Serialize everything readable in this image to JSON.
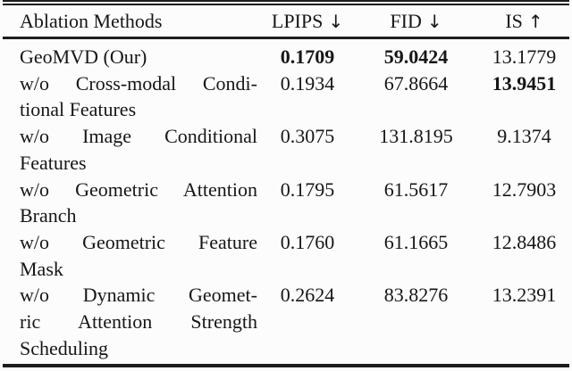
{
  "colors": {
    "background": "#fcfcfc",
    "text": "#161616",
    "rule": "#1d1d1d"
  },
  "table": {
    "headers": [
      {
        "label": "Ablation Methods",
        "arrow": ""
      },
      {
        "label": "LPIPS",
        "arrow": "↓"
      },
      {
        "label": "FID",
        "arrow": "↓"
      },
      {
        "label": "IS",
        "arrow": "↑"
      }
    ],
    "rows": [
      {
        "method": "GeoMVD (Our)",
        "method_lines": [
          {
            "text": "GeoMVD (Our)",
            "justify": false
          }
        ],
        "values": [
          {
            "text": "0.1709",
            "bold": true
          },
          {
            "text": "59.0424",
            "bold": true
          },
          {
            "text": "13.1779",
            "bold": false
          }
        ]
      },
      {
        "method": "w/o Cross-modal Conditional Features",
        "method_lines": [
          {
            "text": "w/o Cross-modal Condi-",
            "justify": true
          },
          {
            "text": "tional Features",
            "justify": false
          }
        ],
        "values": [
          {
            "text": "0.1934",
            "bold": false
          },
          {
            "text": "67.8664",
            "bold": false
          },
          {
            "text": "13.9451",
            "bold": true
          }
        ]
      },
      {
        "method": "w/o Image Conditional Features",
        "method_lines": [
          {
            "text": "w/o Image Conditional",
            "justify": true
          },
          {
            "text": "Features",
            "justify": false
          }
        ],
        "values": [
          {
            "text": "0.3075",
            "bold": false
          },
          {
            "text": "131.8195",
            "bold": false
          },
          {
            "text": "9.1374",
            "bold": false
          }
        ]
      },
      {
        "method": "w/o Geometric Attention Branch",
        "method_lines": [
          {
            "text": "w/o Geometric Attention",
            "justify": true
          },
          {
            "text": "Branch",
            "justify": false
          }
        ],
        "values": [
          {
            "text": "0.1795",
            "bold": false
          },
          {
            "text": "61.5617",
            "bold": false
          },
          {
            "text": "12.7903",
            "bold": false
          }
        ]
      },
      {
        "method": "w/o Geometric Feature Mask",
        "method_lines": [
          {
            "text": "w/o Geometric Feature",
            "justify": true
          },
          {
            "text": "Mask",
            "justify": false
          }
        ],
        "values": [
          {
            "text": "0.1760",
            "bold": false
          },
          {
            "text": "61.1665",
            "bold": false
          },
          {
            "text": "12.8486",
            "bold": false
          }
        ]
      },
      {
        "method": "w/o Dynamic Geometric Attention Strength Scheduling",
        "method_lines": [
          {
            "text": "w/o Dynamic Geomet-",
            "justify": true
          },
          {
            "text": "ric Attention Strength",
            "justify": true
          },
          {
            "text": "Scheduling",
            "justify": false
          }
        ],
        "values": [
          {
            "text": "0.2624",
            "bold": false
          },
          {
            "text": "83.8276",
            "bold": false
          },
          {
            "text": "13.2391",
            "bold": false
          }
        ]
      }
    ]
  },
  "chart_data": {
    "type": "table",
    "title": "Ablation Methods",
    "columns": [
      "Ablation Methods",
      "LPIPS ↓",
      "FID ↓",
      "IS ↑"
    ],
    "rows": [
      [
        "GeoMVD (Our)",
        0.1709,
        59.0424,
        13.1779
      ],
      [
        "w/o Cross-modal Conditional Features",
        0.1934,
        67.8664,
        13.9451
      ],
      [
        "w/o Image Conditional Features",
        0.3075,
        131.8195,
        9.1374
      ],
      [
        "w/o Geometric Attention Branch",
        0.1795,
        61.5617,
        12.7903
      ],
      [
        "w/o Geometric Feature Mask",
        0.176,
        61.1665,
        12.8486
      ],
      [
        "w/o Dynamic Geometric Attention Strength Scheduling",
        0.2624,
        83.8276,
        13.2391
      ]
    ],
    "bold_cells": [
      [
        0,
        1
      ],
      [
        0,
        2
      ],
      [
        1,
        3
      ]
    ]
  }
}
